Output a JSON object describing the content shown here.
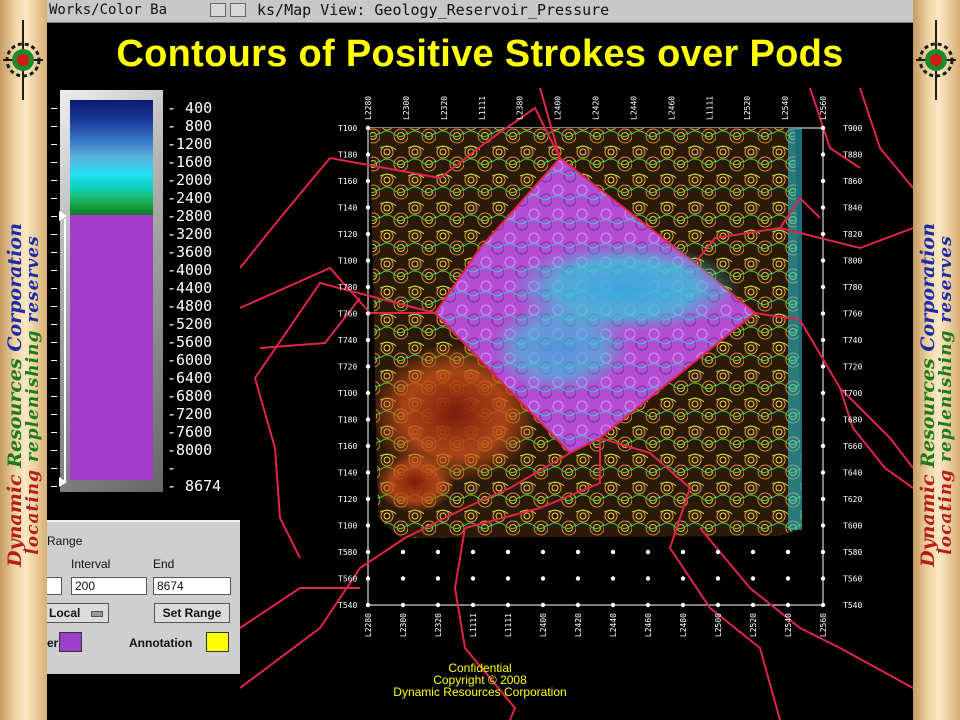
{
  "window": {
    "left_tab_title": "Works/Color Ba",
    "map_title": "ks/Map View: Geology_Reservoir_Pressure"
  },
  "slide": {
    "title": "Contours of Positive Strokes over Pods"
  },
  "branding": {
    "line1_word1": "Dynamic",
    "line1_word2": "Resources",
    "line1_word3": "Corporation",
    "line2_word1": "locating",
    "line2_word2": "replenishing",
    "line2_word3": "reserves",
    "colors": {
      "red": "#b71c1c",
      "green": "#1b7a1b",
      "blue": "#1a2aa8"
    }
  },
  "color_bar": {
    "labels": [
      "- 400",
      "- 800",
      "-1200",
      "-1600",
      "-2000",
      "-2400",
      "-2800",
      "-3200",
      "-3600",
      "-4000",
      "-4400",
      "-4800",
      "-5200",
      "-5600",
      "-6000",
      "-6400",
      "-6800",
      "-7200",
      "-7600",
      "-8000",
      "-",
      "- 8674"
    ],
    "colors": {
      "top": "#0a1a6e",
      "mid": "#22e0f0",
      "low": "#169a38",
      "fill": "#a03cc8"
    }
  },
  "range_panel": {
    "heading": "Range",
    "interval_label": "Interval",
    "end_label": "End",
    "start_value": "",
    "interval_value": "200",
    "end_value": "8674",
    "mode_select": "Local",
    "set_range_button": "Set Range",
    "fill_label": "er",
    "fill_color": "#9b3fc9",
    "annotation_label": "Annotation",
    "annotation_color": "#ffff00"
  },
  "map": {
    "top_ticks": [
      "L2280",
      "L2300",
      "L2320",
      "L1111",
      "L2380",
      "L2400",
      "L2420",
      "L2440",
      "L2460",
      "L1111",
      "L2520",
      "L2540",
      "L2560"
    ],
    "bottom_ticks": [
      "L2280",
      "L2300",
      "L2320",
      "L1111",
      "L1111",
      "L2400",
      "L2420",
      "L2440",
      "L2460",
      "L2480",
      "L2500",
      "L2520",
      "L2540",
      "L2560"
    ],
    "left_ticks": [
      "T100",
      "T180",
      "T160",
      "T140",
      "T120",
      "T100",
      "T780",
      "T760",
      "T740",
      "T720",
      "T100",
      "T180",
      "T160",
      "T140",
      "T120",
      "T100",
      "T580",
      "T560",
      "T540"
    ],
    "right_ticks": [
      "T900",
      "T880",
      "T860",
      "T840",
      "T820",
      "T800",
      "T780",
      "T760",
      "T740",
      "T720",
      "T700",
      "T680",
      "T660",
      "T640",
      "T620",
      "T600",
      "T580",
      "T560",
      "T540"
    ],
    "boundary_color": "#e0244a"
  },
  "footer": {
    "line1": "Confidential",
    "line2": "Copyright © 2008",
    "line3": "Dynamic Resources Corporation"
  }
}
